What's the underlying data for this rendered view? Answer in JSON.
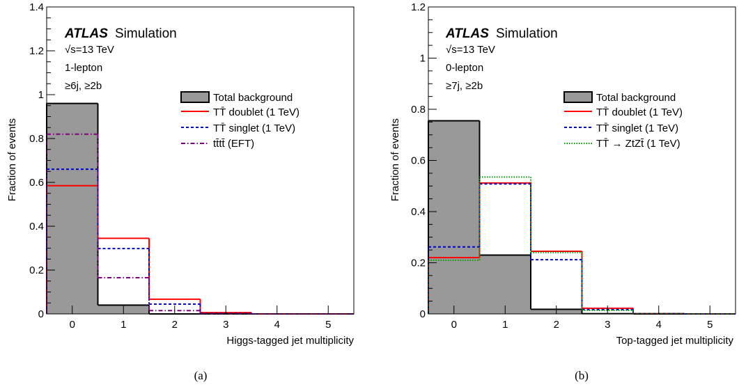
{
  "chart_data": [
    {
      "type": "bar",
      "panel_label": "(a)",
      "atlas_label": "ATLAS",
      "atlas_suffix": "Simulation",
      "info_lines": [
        "√s=13 TeV",
        "1-lepton",
        "≥6j, ≥2b"
      ],
      "xlabel": "Higgs-tagged jet multiplicity",
      "ylabel": "Fraction of events",
      "categories": [
        "0",
        "1",
        "2",
        "3",
        "4",
        "5"
      ],
      "ylim": [
        0,
        1.4
      ],
      "yticks": [
        "0",
        "0.2",
        "0.4",
        "0.6",
        "0.8",
        "1",
        "1.2",
        "1.4"
      ],
      "series": [
        {
          "name": "Total background",
          "style": "filled",
          "color": "#999999",
          "values": [
            0.96,
            0.04,
            0.0,
            0.0,
            0.0,
            0.0
          ]
        },
        {
          "name": "TT̄ doublet (1 TeV)",
          "style": "solid",
          "color": "#ff0000",
          "values": [
            0.585,
            0.345,
            0.067,
            0.006,
            0.0,
            0.0
          ]
        },
        {
          "name": "TT̄ singlet (1 TeV)",
          "style": "dashed",
          "color": "#0000cc",
          "values": [
            0.66,
            0.298,
            0.045,
            0.002,
            0.0,
            0.0
          ]
        },
        {
          "name": "tt̄tt̄ (EFT)",
          "style": "dashdot",
          "color": "#7f007f",
          "values": [
            0.82,
            0.165,
            0.015,
            0.0,
            0.0,
            0.0
          ]
        }
      ]
    },
    {
      "type": "bar",
      "panel_label": "(b)",
      "atlas_label": "ATLAS",
      "atlas_suffix": "Simulation",
      "info_lines": [
        "√s=13 TeV",
        "0-lepton",
        "≥7j, ≥2b"
      ],
      "xlabel": "Top-tagged jet multiplicity",
      "ylabel": "Fraction of events",
      "categories": [
        "0",
        "1",
        "2",
        "3",
        "4",
        "5"
      ],
      "ylim": [
        0,
        1.2
      ],
      "yticks": [
        "0",
        "0.2",
        "0.4",
        "0.6",
        "0.8",
        "1",
        "1.2"
      ],
      "series": [
        {
          "name": "Total background",
          "style": "filled",
          "color": "#999999",
          "values": [
            0.755,
            0.23,
            0.018,
            0.001,
            0.0,
            0.0
          ]
        },
        {
          "name": "TT̄ doublet (1 TeV)",
          "style": "solid",
          "color": "#ff0000",
          "values": [
            0.22,
            0.512,
            0.245,
            0.022,
            0.001,
            0.0
          ]
        },
        {
          "name": "TT̄ singlet (1 TeV)",
          "style": "dashed",
          "color": "#0000cc",
          "values": [
            0.262,
            0.508,
            0.212,
            0.017,
            0.001,
            0.0
          ]
        },
        {
          "name": "TT̄ → ZtZt̄ (1 TeV)",
          "style": "dotted",
          "color": "#009900",
          "values": [
            0.21,
            0.535,
            0.24,
            0.014,
            0.001,
            0.0
          ]
        }
      ]
    }
  ]
}
